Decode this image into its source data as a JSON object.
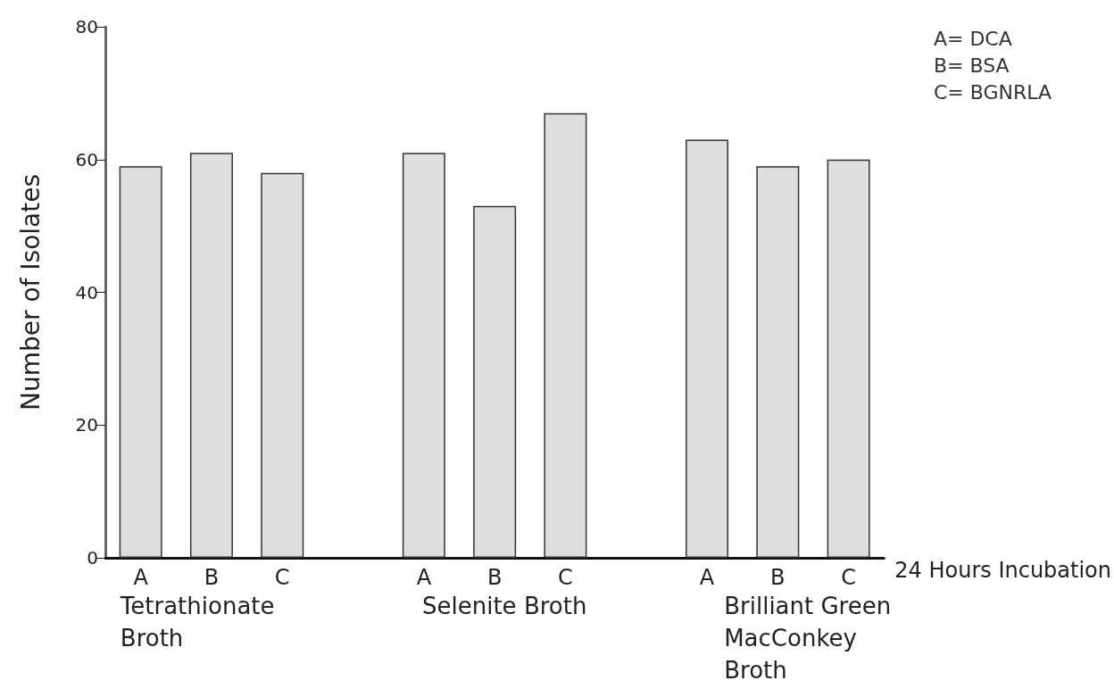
{
  "chart_data": {
    "type": "bar",
    "ylabel": "Number of Isolates",
    "xlabel": "24 Hours Incubation",
    "categories": [
      "A",
      "B",
      "C",
      null,
      "A",
      "B",
      "C",
      null,
      "A",
      "B",
      "C"
    ],
    "values": [
      59,
      61,
      58,
      null,
      61,
      53,
      67,
      null,
      63,
      59,
      60
    ],
    "color": "#dedede",
    "ylim": [
      0,
      80
    ],
    "yticks": [
      0,
      20,
      40,
      60,
      80
    ],
    "grid": false,
    "annotations": [
      "Tetrathionate Broth",
      "Selenite Broth",
      "Brilliant Green MacConkey Broth",
      "A= DCA\nB= BSA\nC= BGNRLA"
    ]
  }
}
